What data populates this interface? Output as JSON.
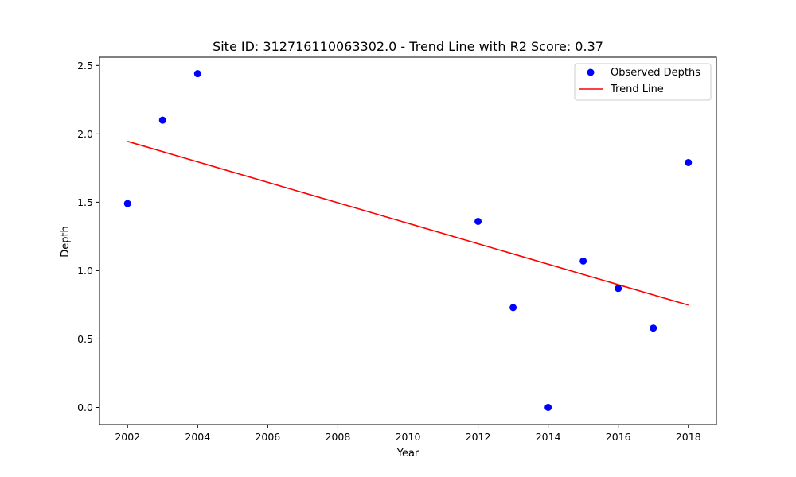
{
  "chart_data": {
    "type": "scatter",
    "title": "Site ID: 312716110063302.0 - Trend Line with R2 Score: 0.37",
    "xlabel": "Year",
    "ylabel": "Depth",
    "xlim": [
      2001.2,
      2018.8
    ],
    "ylim": [
      -0.125,
      2.56
    ],
    "xticks": [
      2002,
      2004,
      2006,
      2008,
      2010,
      2012,
      2014,
      2016,
      2018
    ],
    "yticks": [
      0.0,
      0.5,
      1.0,
      1.5,
      2.0,
      2.5
    ],
    "grid": false,
    "legend_position": "top-right",
    "series": [
      {
        "name": "Observed Depths",
        "kind": "scatter",
        "color": "#0000ff",
        "points": [
          {
            "x": 2002,
            "y": 1.49
          },
          {
            "x": 2003,
            "y": 2.1
          },
          {
            "x": 2004,
            "y": 2.44
          },
          {
            "x": 2012,
            "y": 1.36
          },
          {
            "x": 2013,
            "y": 0.73
          },
          {
            "x": 2014,
            "y": 0.0
          },
          {
            "x": 2015,
            "y": 1.07
          },
          {
            "x": 2016,
            "y": 0.87
          },
          {
            "x": 2017,
            "y": 0.58
          },
          {
            "x": 2018,
            "y": 1.79
          }
        ]
      },
      {
        "name": "Trend Line",
        "kind": "line",
        "color": "#ff0000",
        "points": [
          {
            "x": 2002,
            "y": 1.945
          },
          {
            "x": 2018,
            "y": 0.748
          }
        ]
      }
    ]
  }
}
